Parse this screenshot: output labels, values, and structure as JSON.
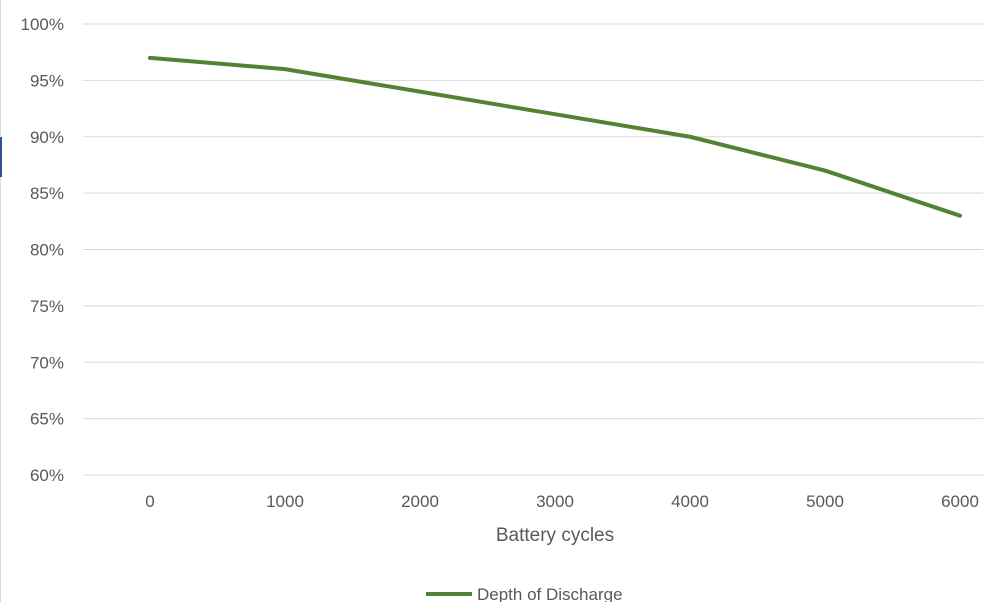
{
  "chart_data": {
    "type": "line",
    "title": "",
    "xlabel": "Battery cycles",
    "ylabel": "",
    "x": [
      0,
      1000,
      2000,
      3000,
      4000,
      5000,
      6000
    ],
    "series": [
      {
        "name": "Depth of Discharge",
        "values": [
          97,
          96,
          94,
          92,
          90,
          87,
          83
        ],
        "color": "#548235"
      }
    ],
    "y_ticks": [
      60,
      65,
      70,
      75,
      80,
      85,
      90,
      95,
      100
    ],
    "y_tick_labels": [
      "60%",
      "65%",
      "70%",
      "75%",
      "80%",
      "85%",
      "90%",
      "95%",
      "100%"
    ],
    "x_tick_labels": [
      "0",
      "1000",
      "2000",
      "3000",
      "4000",
      "5000",
      "6000"
    ],
    "ylim": [
      60,
      100
    ],
    "grid": true,
    "legend": "bottom-center",
    "gridline_color": "#d9d9d9",
    "text_color": "#595959"
  }
}
